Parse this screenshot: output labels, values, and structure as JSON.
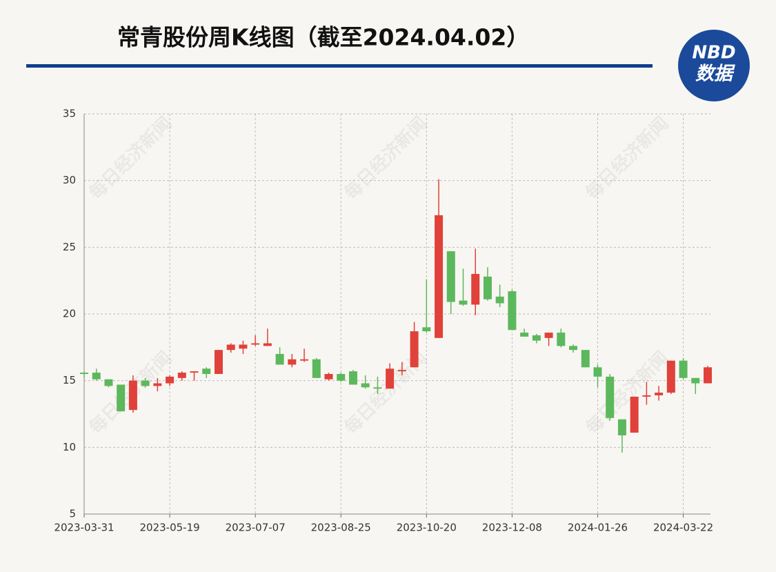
{
  "chart_data": {
    "type": "candlestick",
    "title": "常青股份周K线图（截至2024.04.02）",
    "logo_text": "NBD",
    "logo_subtext": "数据",
    "watermark": "每日经济新闻",
    "categories": [
      "2023-03-31",
      null,
      null,
      null,
      null,
      null,
      null,
      "2023-05-19",
      null,
      null,
      null,
      null,
      null,
      null,
      "2023-07-07",
      null,
      null,
      null,
      null,
      null,
      null,
      "2023-08-25",
      null,
      null,
      null,
      null,
      null,
      null,
      "2023-10-20",
      null,
      null,
      null,
      null,
      null,
      null,
      "2023-12-08",
      null,
      null,
      null,
      null,
      null,
      null,
      "2024-01-26",
      null,
      null,
      null,
      null,
      null,
      null,
      "2024-03-22",
      null,
      null
    ],
    "series": {
      "open": [
        15.6,
        15.6,
        15.1,
        14.7,
        12.8,
        15.0,
        14.6,
        14.8,
        15.2,
        15.6,
        15.9,
        15.5,
        17.3,
        17.4,
        17.7,
        17.6,
        17.0,
        16.2,
        16.5,
        16.6,
        15.1,
        15.5,
        15.7,
        14.8,
        14.5,
        14.4,
        15.7,
        16.0,
        19.0,
        18.2,
        24.7,
        21.0,
        20.7,
        22.8,
        21.3,
        21.7,
        18.6,
        18.4,
        18.2,
        18.6,
        17.6,
        17.3,
        16.0,
        15.3,
        12.1,
        11.1,
        13.8,
        13.9,
        14.1,
        16.5,
        15.2,
        14.8
      ],
      "high": [
        15.7,
        15.9,
        15.1,
        14.7,
        15.4,
        15.2,
        15.2,
        15.4,
        15.7,
        15.7,
        16.0,
        17.3,
        17.8,
        18.0,
        18.4,
        18.9,
        17.5,
        17.0,
        17.4,
        16.7,
        15.6,
        15.6,
        15.8,
        15.4,
        15.3,
        16.3,
        16.4,
        19.4,
        22.6,
        30.1,
        24.7,
        23.4,
        24.9,
        23.5,
        22.2,
        21.8,
        18.9,
        18.5,
        18.6,
        18.9,
        17.7,
        17.3,
        16.2,
        15.5,
        12.1,
        13.8,
        14.9,
        14.6,
        16.5,
        16.7,
        15.2,
        16.1
      ],
      "low": [
        15.2,
        15.0,
        14.5,
        12.7,
        12.6,
        14.5,
        14.2,
        14.6,
        15.0,
        15.0,
        15.2,
        15.5,
        17.1,
        17.0,
        17.6,
        17.6,
        16.2,
        16.0,
        16.4,
        15.2,
        15.0,
        14.9,
        14.7,
        14.4,
        14.0,
        14.4,
        15.4,
        16.0,
        18.6,
        18.2,
        20.0,
        20.6,
        19.9,
        21.0,
        20.5,
        18.8,
        18.3,
        17.8,
        17.6,
        17.5,
        17.1,
        16.0,
        14.5,
        12.0,
        9.6,
        11.1,
        13.2,
        13.5,
        14.0,
        15.1,
        14.0,
        14.8
      ],
      "close": [
        15.5,
        15.1,
        14.6,
        12.7,
        15.0,
        14.6,
        14.8,
        15.3,
        15.6,
        15.7,
        15.5,
        17.3,
        17.7,
        17.7,
        17.8,
        17.8,
        16.2,
        16.6,
        16.6,
        15.2,
        15.5,
        15.0,
        14.7,
        14.5,
        14.4,
        15.9,
        15.8,
        18.7,
        18.7,
        27.4,
        20.9,
        20.7,
        23.0,
        21.1,
        20.8,
        18.8,
        18.3,
        18.0,
        18.6,
        17.6,
        17.3,
        16.0,
        15.3,
        12.2,
        10.9,
        13.8,
        13.9,
        14.1,
        16.5,
        15.2,
        14.8,
        16.0
      ]
    },
    "up_color": "#e0413a",
    "down_color": "#5cb85c",
    "ylim": [
      5,
      35
    ],
    "yticks": [
      5,
      10,
      15,
      20,
      25,
      30,
      35
    ],
    "grid": true
  }
}
